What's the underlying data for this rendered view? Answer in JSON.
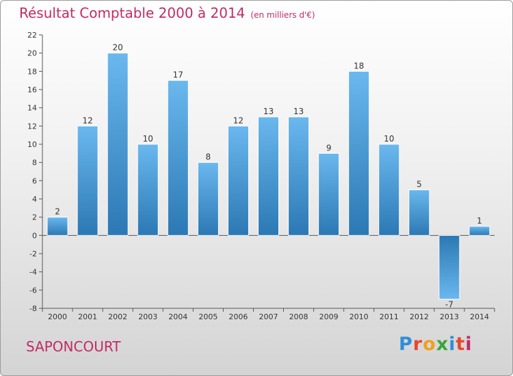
{
  "title": "Résultat Comptable 2000 à 2014",
  "subtitle": "(en milliers d'€)",
  "location": "SAPONCOURT",
  "logo_text": "Proxiti",
  "colors": {
    "title": "#c22a63",
    "bar_light": "#6ab8ee",
    "bar_dark": "#2b78b4"
  },
  "chart_data": {
    "type": "bar",
    "title": "Résultat Comptable 2000 à 2014",
    "subtitle": "(en milliers d'€)",
    "categories": [
      "2000",
      "2001",
      "2002",
      "2003",
      "2004",
      "2005",
      "2006",
      "2007",
      "2008",
      "2009",
      "2010",
      "2011",
      "2012",
      "2013",
      "2014"
    ],
    "values": [
      2,
      12,
      20,
      10,
      17,
      8,
      12,
      13,
      13,
      9,
      18,
      10,
      5,
      -7,
      1
    ],
    "data_labels": [
      "2",
      "12",
      "20",
      "10",
      "17",
      "8",
      "12",
      "13",
      "13",
      "9",
      "18",
      "10",
      "5",
      "-7",
      "1"
    ],
    "ylim": [
      -8,
      22
    ],
    "yticks": [
      -8,
      -6,
      -4,
      -2,
      0,
      2,
      4,
      6,
      8,
      10,
      12,
      14,
      16,
      18,
      20,
      22
    ],
    "grid": false,
    "legend": "none"
  }
}
